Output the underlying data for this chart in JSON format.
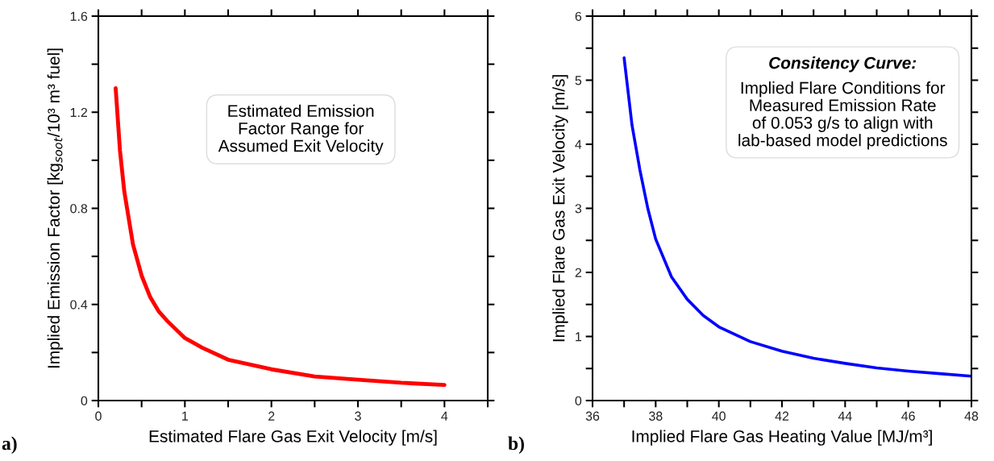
{
  "chart_data": [
    {
      "type": "line",
      "xlabel": "Estimated Flare Gas Exit Velocity [m/s]",
      "ylabel": "Implied Emission Factor [kg$_{soot}$/10³ m³ fuel]",
      "annotations": [
        "a)",
        "Estimated Emission\nFactor Range for\nAssumed Exit Velocity"
      ],
      "xlim": [
        0,
        4.5
      ],
      "ylim": [
        0,
        1.6
      ],
      "xticks": [
        0,
        {
          "value": 0.5,
          "label": null
        },
        1,
        {
          "value": 1.5,
          "label": null
        },
        2,
        {
          "value": 2.5,
          "label": null
        },
        3,
        {
          "value": 3.5,
          "label": null
        },
        4,
        {
          "value": 4.5,
          "label": null
        }
      ],
      "yticks": [
        0,
        {
          "value": 0.2,
          "label": null
        },
        0.4,
        {
          "value": 0.6,
          "label": null
        },
        0.8,
        {
          "value": 1.0,
          "label": null
        },
        1.2,
        {
          "value": 1.4,
          "label": null
        },
        1.6
      ],
      "grid": false,
      "series": [
        {
          "color": "#ff0000",
          "x": [
            0.2,
            0.25,
            0.3,
            0.4,
            0.5,
            0.6,
            0.7,
            0.8,
            1.0,
            1.2,
            1.5,
            2,
            2.5,
            3,
            3.5,
            4
          ],
          "values": [
            1.3,
            1.04,
            0.87,
            0.65,
            0.52,
            0.43,
            0.37,
            0.33,
            0.26,
            0.22,
            0.17,
            0.13,
            0.1,
            0.087,
            0.074,
            0.065
          ]
        }
      ]
    },
    {
      "type": "line",
      "xlabel": "Implied Flare Gas Heating Value [MJ/m³]",
      "ylabel": "Implied Flare Gas Exit Velocity [m/s]",
      "annotations": [
        "b)",
        "Consitency Curve:",
        "Implied Flare Conditions for\nMeasured Emission Rate\nof 0.053 g/s to align with\nlab-based model predictions"
      ],
      "xlim": [
        36,
        48
      ],
      "ylim": [
        0,
        6
      ],
      "xticks": [
        36,
        {
          "value": 37,
          "label": null
        },
        38,
        {
          "value": 39,
          "label": null
        },
        40,
        {
          "value": 41,
          "label": null
        },
        42,
        {
          "value": 43,
          "label": null
        },
        44,
        {
          "value": 45,
          "label": null
        },
        46,
        {
          "value": 47,
          "label": null
        },
        48
      ],
      "yticks": [
        0,
        {
          "value": 0.5,
          "label": null
        },
        1,
        {
          "value": 1.5,
          "label": null
        },
        2,
        {
          "value": 2.5,
          "label": null
        },
        3,
        {
          "value": 3.5,
          "label": null
        },
        4,
        {
          "value": 4.5,
          "label": null
        },
        5,
        {
          "value": 5.5,
          "label": null
        },
        6
      ],
      "grid": false,
      "series": [
        {
          "color": "#0000ff",
          "x": [
            37,
            37.25,
            37.5,
            37.75,
            38,
            38.5,
            39,
            39.5,
            40,
            41,
            42,
            43,
            44,
            45,
            46,
            47,
            48
          ],
          "values": [
            5.35,
            4.3,
            3.6,
            3.0,
            2.52,
            1.93,
            1.58,
            1.33,
            1.15,
            0.92,
            0.77,
            0.66,
            0.58,
            0.51,
            0.46,
            0.42,
            0.38
          ]
        }
      ]
    }
  ]
}
